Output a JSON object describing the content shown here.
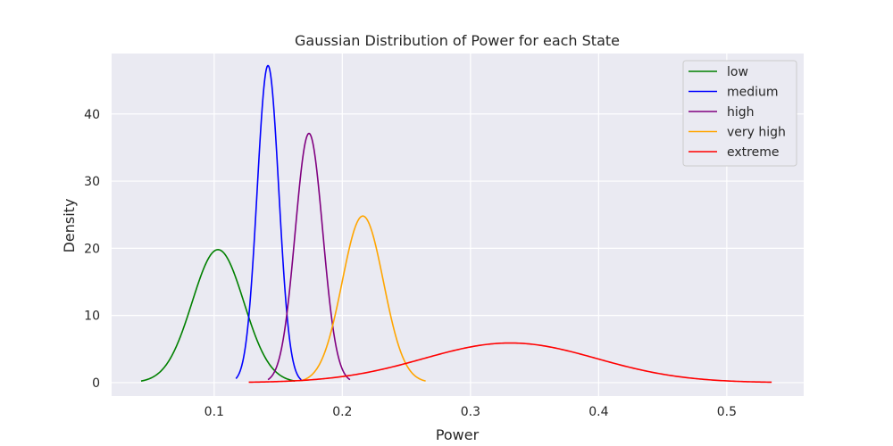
{
  "chart_data": {
    "type": "line",
    "title": "Gaussian Distribution of Power for each State",
    "xlabel": "Power",
    "ylabel": "Density",
    "xlim": [
      0.02,
      0.56
    ],
    "ylim": [
      -2,
      49
    ],
    "xticks": [
      0.1,
      0.2,
      0.3,
      0.4,
      0.5
    ],
    "xtick_labels": [
      "0.1",
      "0.2",
      "0.3",
      "0.4",
      "0.5"
    ],
    "yticks": [
      0,
      10,
      20,
      30,
      40
    ],
    "ytick_labels": [
      "0",
      "10",
      "20",
      "30",
      "40"
    ],
    "grid": true,
    "legend_position": "top-right",
    "series": [
      {
        "name": "low",
        "color": "#008000",
        "mean": 0.103,
        "peak": 19.8,
        "x_start": 0.043,
        "x_end": 0.163
      },
      {
        "name": "medium",
        "color": "#0000ff",
        "mean": 0.142,
        "peak": 47.2,
        "x_start": 0.117,
        "x_end": 0.168
      },
      {
        "name": "high",
        "color": "#800080",
        "mean": 0.174,
        "peak": 37.1,
        "x_start": 0.142,
        "x_end": 0.206
      },
      {
        "name": "very high",
        "color": "#ffa500",
        "mean": 0.216,
        "peak": 24.8,
        "x_start": 0.168,
        "x_end": 0.265
      },
      {
        "name": "extreme",
        "color": "#ff0000",
        "mean": 0.331,
        "peak": 5.9,
        "x_start": 0.127,
        "x_end": 0.535
      }
    ]
  }
}
